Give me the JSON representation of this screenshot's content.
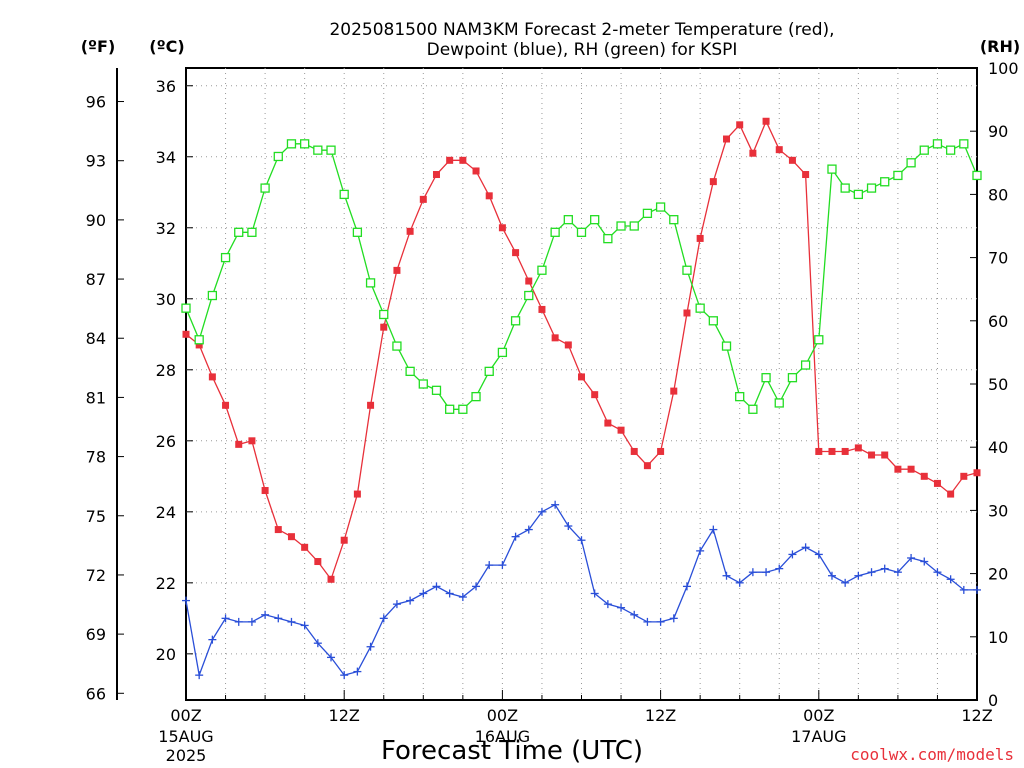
{
  "chart_data": {
    "type": "line",
    "title_line1": "2025081500 NAM3KM Forecast 2-meter Temperature (red),",
    "title_line2": "Dewpoint (blue), RH (green) for KSPI",
    "xlabel": "Forecast Time (UTC)",
    "credit": "coolwx.com/models",
    "unit_f": "(ºF)",
    "unit_c": "(ºC)",
    "unit_rh": "(RH)",
    "x_ticks": [
      {
        "hour": 0,
        "label": "00Z",
        "sub1": "15AUG",
        "sub2": "2025"
      },
      {
        "hour": 12,
        "label": "12Z",
        "sub1": "",
        "sub2": ""
      },
      {
        "hour": 24,
        "label": "00Z",
        "sub1": "16AUG",
        "sub2": ""
      },
      {
        "hour": 36,
        "label": "12Z",
        "sub1": "",
        "sub2": ""
      },
      {
        "hour": 48,
        "label": "00Z",
        "sub1": "17AUG",
        "sub2": ""
      },
      {
        "hour": 60,
        "label": "12Z",
        "sub1": "",
        "sub2": ""
      }
    ],
    "xlim": [
      0,
      60
    ],
    "ylim_c": [
      18.7,
      36.5
    ],
    "yticks_c": [
      20,
      22,
      24,
      26,
      28,
      30,
      32,
      34,
      36
    ],
    "yticks_f": [
      66,
      69,
      72,
      75,
      78,
      81,
      84,
      87,
      90,
      93,
      96
    ],
    "ylim_rh": [
      0,
      100
    ],
    "yticks_rh": [
      0,
      10,
      20,
      30,
      40,
      50,
      60,
      70,
      80,
      90,
      100
    ],
    "grid": true,
    "series": [
      {
        "name": "2-meter Temperature",
        "axis": "c",
        "color": "#e8303a",
        "marker": "filled-square",
        "values": [
          29.0,
          28.7,
          27.8,
          27.0,
          25.9,
          26.0,
          24.6,
          23.5,
          23.3,
          23.0,
          22.6,
          22.1,
          23.2,
          24.5,
          27.0,
          29.2,
          30.8,
          31.9,
          32.8,
          33.5,
          33.9,
          33.9,
          33.6,
          32.9,
          32.0,
          31.3,
          30.5,
          29.7,
          28.9,
          28.7,
          27.8,
          27.3,
          26.5,
          26.3,
          25.7,
          25.3,
          25.7,
          27.4,
          29.6,
          31.7,
          33.3,
          34.5,
          34.9,
          34.1,
          35.0,
          34.2,
          33.9,
          33.5,
          25.7,
          25.7,
          25.7,
          25.8,
          25.6,
          25.6,
          25.2,
          25.2,
          25.0,
          24.8,
          24.5,
          25.0,
          25.1
        ]
      },
      {
        "name": "Dewpoint",
        "axis": "c",
        "color": "#2a4fd8",
        "marker": "plus",
        "values": [
          21.5,
          19.4,
          20.4,
          21.0,
          20.9,
          20.9,
          21.1,
          21.0,
          20.9,
          20.8,
          20.3,
          19.9,
          19.4,
          19.5,
          20.2,
          21.0,
          21.4,
          21.5,
          21.7,
          21.9,
          21.7,
          21.6,
          21.9,
          22.5,
          22.5,
          23.3,
          23.5,
          24.0,
          24.2,
          23.6,
          23.2,
          21.7,
          21.4,
          21.3,
          21.1,
          20.9,
          20.9,
          21.0,
          21.9,
          22.9,
          23.5,
          22.2,
          22.0,
          22.3,
          22.3,
          22.4,
          22.8,
          23.0,
          22.8,
          22.2,
          22.0,
          22.2,
          22.3,
          22.4,
          22.3,
          22.7,
          22.6,
          22.3,
          22.1,
          21.8,
          21.8
        ]
      },
      {
        "name": "RH",
        "axis": "rh",
        "color": "#22dd22",
        "marker": "open-square",
        "values": [
          62,
          57,
          64,
          70,
          74,
          74,
          81,
          86,
          88,
          88,
          87,
          87,
          80,
          74,
          66,
          61,
          56,
          52,
          50,
          49,
          46,
          46,
          48,
          52,
          55,
          60,
          64,
          68,
          74,
          76,
          74,
          76,
          73,
          75,
          75,
          77,
          78,
          76,
          68,
          62,
          60,
          56,
          48,
          46,
          51,
          47,
          51,
          53,
          57,
          84,
          81,
          80,
          81,
          82,
          83,
          85,
          87,
          88,
          87,
          88,
          83
        ]
      }
    ]
  }
}
